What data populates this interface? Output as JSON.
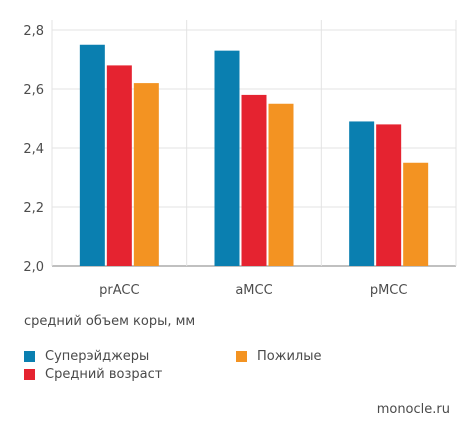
{
  "chart_data": {
    "type": "bar",
    "categories": [
      "prACC",
      "aMCC",
      "pMCC"
    ],
    "series": [
      {
        "name": "Суперэйджеры",
        "color": "#0a7fb0",
        "values": [
          2.75,
          2.73,
          2.49
        ]
      },
      {
        "name": "Средний возраст",
        "color": "#e52330",
        "values": [
          2.68,
          2.58,
          2.48
        ]
      },
      {
        "name": "Пожилые",
        "color": "#f39322",
        "values": [
          2.62,
          2.55,
          2.35
        ]
      }
    ],
    "ylim": [
      2.0,
      2.8
    ],
    "yticks": [
      "2,0",
      "2,2",
      "2,4",
      "2,6",
      "2,8"
    ],
    "ytick_values": [
      2.0,
      2.2,
      2.4,
      2.6,
      2.8
    ],
    "grid": true,
    "legend_placement": "bottom",
    "ylabel": "средний объем коры, мм"
  },
  "source": "monocle.ru"
}
